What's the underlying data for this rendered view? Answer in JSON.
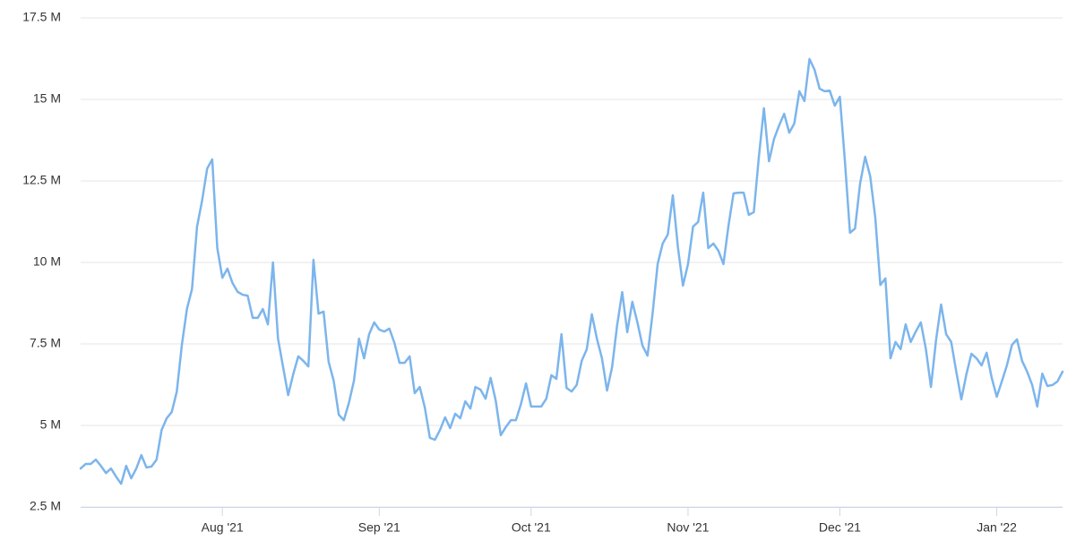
{
  "chart_data": {
    "type": "line",
    "categories": [
      null,
      null,
      null,
      null,
      null,
      null,
      null,
      null,
      null,
      null,
      null,
      null,
      null,
      null,
      null,
      null,
      null,
      null,
      null,
      null,
      null,
      null,
      null,
      null,
      null,
      null,
      null,
      null,
      "Aug '21",
      null,
      null,
      null,
      null,
      null,
      null,
      null,
      null,
      null,
      null,
      null,
      null,
      null,
      null,
      null,
      null,
      null,
      null,
      null,
      null,
      null,
      null,
      null,
      null,
      null,
      null,
      null,
      null,
      null,
      null,
      "Sep '21",
      null,
      null,
      null,
      null,
      null,
      null,
      null,
      null,
      null,
      null,
      null,
      null,
      null,
      null,
      null,
      null,
      null,
      null,
      null,
      null,
      null,
      null,
      null,
      null,
      null,
      null,
      null,
      null,
      null,
      "Oct '21",
      null,
      null,
      null,
      null,
      null,
      null,
      null,
      null,
      null,
      null,
      null,
      null,
      null,
      null,
      null,
      null,
      null,
      null,
      null,
      null,
      null,
      null,
      null,
      null,
      null,
      null,
      null,
      null,
      null,
      null,
      "Nov '21",
      null,
      null,
      null,
      null,
      null,
      null,
      null,
      null,
      null,
      null,
      null,
      null,
      null,
      null,
      null,
      null,
      null,
      null,
      null,
      null,
      null,
      null,
      null,
      null,
      null,
      null,
      null,
      null,
      null,
      "Dec '21",
      null,
      null,
      null,
      null,
      null,
      null,
      null,
      null,
      null,
      null,
      null,
      null,
      null,
      null,
      null,
      null,
      null,
      null,
      null,
      null,
      null,
      null,
      null,
      null,
      null,
      null,
      null,
      null,
      null,
      null,
      "Jan '22",
      null,
      null,
      null,
      null,
      null,
      null,
      null,
      null,
      null,
      null,
      null,
      null,
      null
    ],
    "series": [
      {
        "color": "#7cb5ec",
        "values": [
          3680000,
          3820000,
          3820000,
          3950000,
          3760000,
          3540000,
          3680000,
          3430000,
          3210000,
          3760000,
          3380000,
          3680000,
          4090000,
          3710000,
          3740000,
          3950000,
          4860000,
          5220000,
          5410000,
          6040000,
          7470000,
          8570000,
          9180000,
          11100000,
          11900000,
          12880000,
          13160000,
          10440000,
          9530000,
          9810000,
          9370000,
          9100000,
          9010000,
          8980000,
          8300000,
          8300000,
          8570000,
          8100000,
          10000000,
          7660000,
          6790000,
          5930000,
          6570000,
          7120000,
          6980000,
          6810000,
          10080000,
          8430000,
          8490000,
          6950000,
          6370000,
          5330000,
          5160000,
          5690000,
          6370000,
          7660000,
          7060000,
          7800000,
          8160000,
          7940000,
          7880000,
          7970000,
          7530000,
          6920000,
          6920000,
          7120000,
          5990000,
          6180000,
          5550000,
          4620000,
          4560000,
          4860000,
          5250000,
          4920000,
          5360000,
          5220000,
          5740000,
          5520000,
          6180000,
          6100000,
          5820000,
          6460000,
          5770000,
          4700000,
          4950000,
          5160000,
          5160000,
          5660000,
          6290000,
          5580000,
          5580000,
          5580000,
          5820000,
          6540000,
          6430000,
          7800000,
          6150000,
          6040000,
          6240000,
          6980000,
          7340000,
          8410000,
          7660000,
          7060000,
          6070000,
          6790000,
          8080000,
          9090000,
          7860000,
          8790000,
          8160000,
          7450000,
          7140000,
          8430000,
          9950000,
          10580000,
          10850000,
          12060000,
          10470000,
          9290000,
          9950000,
          11100000,
          11240000,
          12140000,
          10440000,
          10580000,
          10360000,
          9950000,
          11130000,
          12120000,
          12140000,
          12140000,
          11460000,
          11540000,
          13240000,
          14730000,
          13100000,
          13790000,
          14200000,
          14560000,
          13980000,
          14260000,
          15250000,
          14950000,
          16240000,
          15910000,
          15330000,
          15250000,
          15270000,
          14810000,
          15080000,
          13100000,
          10910000,
          11040000,
          12420000,
          13240000,
          12640000,
          11370000,
          9310000,
          9510000,
          7060000,
          7560000,
          7340000,
          8100000,
          7560000,
          7880000,
          8160000,
          7340000,
          6180000,
          7610000,
          8710000,
          7800000,
          7560000,
          6650000,
          5800000,
          6570000,
          7200000,
          7060000,
          6840000,
          7230000,
          6460000,
          5880000,
          6350000,
          6840000,
          7470000,
          7640000,
          6980000,
          6650000,
          6240000,
          5580000,
          6590000,
          6210000,
          6240000,
          6350000,
          6650000
        ]
      }
    ],
    "ylim": [
      2500000,
      17500000
    ],
    "yticks": [
      {
        "value": 2500000,
        "label": "2.5 M"
      },
      {
        "value": 5000000,
        "label": "5 M"
      },
      {
        "value": 7500000,
        "label": "7.5 M"
      },
      {
        "value": 10000000,
        "label": "10 M"
      },
      {
        "value": 12500000,
        "label": "12.5 M"
      },
      {
        "value": 15000000,
        "label": "15 M"
      },
      {
        "value": 17500000,
        "label": "17.5 M"
      }
    ],
    "grid": true
  }
}
